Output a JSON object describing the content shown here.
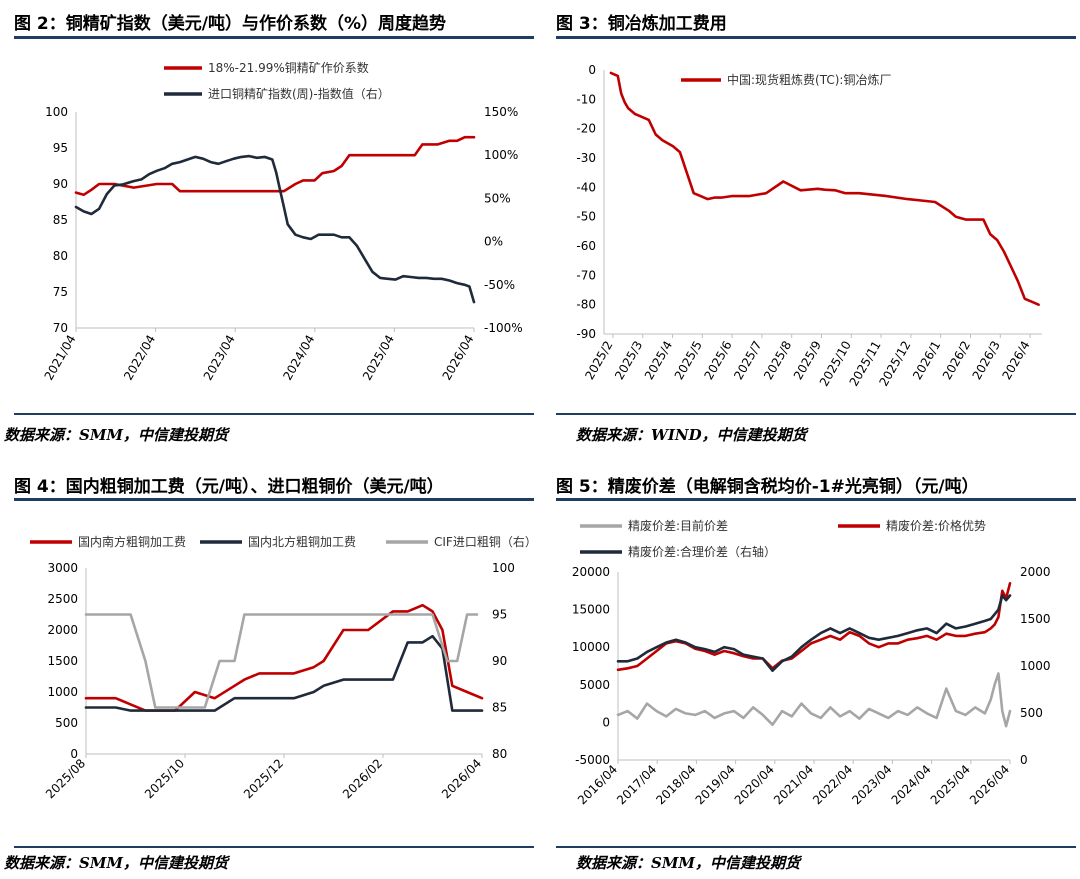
{
  "figures": [
    {
      "title": "图 2：铜精矿指数（美元/吨）与作价系数（%）周度趋势",
      "source": "数据来源：SMM，中信建投期货"
    },
    {
      "title": "图 3：铜冶炼加工费用",
      "source": "数据来源：WIND，中信建投期货"
    },
    {
      "title": "图 4：国内粗铜加工费（元/吨）、进口粗铜价（美元/吨）",
      "source": "数据来源：SMM，中信建投期货"
    },
    {
      "title": "图 5：精废价差（电解铜含税均价-1#光亮铜）（元/吨）",
      "source": "数据来源：SMM，中信建投期货"
    }
  ],
  "colors": {
    "red": "#c00000",
    "navy": "#1f2a3a",
    "gray": "#a6a6a6",
    "rule": "#1f3d63"
  },
  "chart_data": [
    {
      "id": "fig2",
      "type": "line",
      "x_tick_labels": [
        "2021/04",
        "2022/04",
        "2023/04",
        "2024/04",
        "2025/04",
        "2026/04"
      ],
      "x_domain": [
        2021.25,
        2026.42
      ],
      "y_left": {
        "ticks": [
          "70",
          "75",
          "80",
          "85",
          "90",
          "95",
          "100"
        ],
        "lim": [
          70,
          100
        ]
      },
      "y_right": {
        "ticks": [
          "-100%",
          "-50%",
          "0%",
          "50%",
          "100%",
          "150%"
        ],
        "lim": [
          -100,
          150
        ]
      },
      "legend": "top",
      "series": [
        {
          "name": "18%-21.99%铜精矿作价系数",
          "color": "#c00000",
          "axis": "left",
          "x": [
            2021.25,
            2021.35,
            2021.45,
            2021.55,
            2021.75,
            2022.0,
            2022.3,
            2022.5,
            2022.6,
            2023.0,
            2023.3,
            2023.7,
            2023.95,
            2024.1,
            2024.2,
            2024.35,
            2024.45,
            2024.6,
            2024.7,
            2024.8,
            2025.0,
            2025.2,
            2025.4,
            2025.55,
            2025.65,
            2025.75,
            2025.95,
            2026.1,
            2026.2,
            2026.3,
            2026.42
          ],
          "y": [
            88.8,
            88.5,
            89.2,
            90,
            90,
            89.5,
            90,
            90,
            89,
            89,
            89,
            89,
            89,
            90,
            90.5,
            90.5,
            91.5,
            91.8,
            92.5,
            94,
            94,
            94,
            94,
            94,
            94,
            95.5,
            95.5,
            96,
            96,
            96.5,
            96.5
          ]
        },
        {
          "name": "进口铜精矿指数(周)-指数值（右）",
          "color": "#1f2a3a",
          "axis": "right",
          "x": [
            2021.25,
            2021.35,
            2021.45,
            2021.55,
            2021.65,
            2021.75,
            2021.85,
            2022.0,
            2022.1,
            2022.2,
            2022.3,
            2022.4,
            2022.5,
            2022.6,
            2022.7,
            2022.8,
            2022.9,
            2023.0,
            2023.1,
            2023.2,
            2023.3,
            2023.4,
            2023.5,
            2023.6,
            2023.7,
            2023.8,
            2023.85,
            2023.9,
            2023.95,
            2024.0,
            2024.1,
            2024.2,
            2024.3,
            2024.4,
            2024.5,
            2024.6,
            2024.7,
            2024.8,
            2024.9,
            2025.0,
            2025.1,
            2025.2,
            2025.3,
            2025.4,
            2025.5,
            2025.6,
            2025.7,
            2025.8,
            2025.9,
            2026.0,
            2026.1,
            2026.2,
            2026.3,
            2026.36,
            2026.42
          ],
          "y": [
            40,
            35,
            32,
            38,
            55,
            65,
            66,
            70,
            72,
            78,
            82,
            85,
            90,
            92,
            95,
            98,
            96,
            92,
            90,
            93,
            96,
            98,
            99,
            97,
            98,
            95,
            80,
            60,
            40,
            20,
            8,
            5,
            3,
            8,
            8,
            8,
            5,
            5,
            -5,
            -20,
            -35,
            -42,
            -43,
            -44,
            -40,
            -41,
            -42,
            -42,
            -43,
            -43,
            -45,
            -48,
            -50,
            -52,
            -70
          ]
        }
      ]
    },
    {
      "id": "fig3",
      "type": "line",
      "x_tick_labels": [
        "2025/2",
        "2025/3",
        "2025/4",
        "2025/5",
        "2025/6",
        "2025/7",
        "2025/8",
        "2025/9",
        "2025/10",
        "2025/11",
        "2025/12",
        "2026/1",
        "2026/2",
        "2026/3",
        "2026/4"
      ],
      "x_domain": [
        2025.08,
        2026.35
      ],
      "y_left": {
        "ticks": [
          "-90",
          "-80",
          "-70",
          "-60",
          "-50",
          "-40",
          "-30",
          "-20",
          "-10",
          "0"
        ],
        "lim": [
          -90,
          0
        ]
      },
      "legend": "top",
      "series": [
        {
          "name": "中国:现货粗炼费(TC):铜冶炼厂",
          "color": "#c00000",
          "axis": "left",
          "x": [
            2025.1,
            2025.12,
            2025.13,
            2025.14,
            2025.15,
            2025.17,
            2025.19,
            2025.21,
            2025.23,
            2025.25,
            2025.28,
            2025.3,
            2025.32,
            2025.34,
            2025.36,
            2025.38,
            2025.4,
            2025.42,
            2025.45,
            2025.5,
            2025.55,
            2025.6,
            2025.65,
            2025.7,
            2025.72,
            2025.75,
            2025.78,
            2025.82,
            2025.9,
            2025.96,
            2026.0,
            2026.04,
            2026.08,
            2026.1,
            2026.13,
            2026.15,
            2026.18,
            2026.2,
            2026.22,
            2026.24,
            2026.26,
            2026.28,
            2026.3,
            2026.32,
            2026.34
          ],
          "y": [
            -1,
            -2,
            -8,
            -11,
            -13,
            -15,
            -16,
            -17,
            -22,
            -24,
            -26,
            -28,
            -35,
            -42,
            -43,
            -44,
            -43.5,
            -43.5,
            -43,
            -43,
            -42,
            -38,
            -41,
            -40.5,
            -40.8,
            -41,
            -42,
            -42,
            -43,
            -44,
            -44.5,
            -45,
            -48,
            -50,
            -51,
            -51,
            -51,
            -56,
            -58,
            -62,
            -67,
            -72,
            -78,
            -79,
            -80
          ]
        }
      ]
    },
    {
      "id": "fig4",
      "type": "line",
      "x_tick_labels": [
        "2025/08",
        "2025/10",
        "2025/12",
        "2026/02",
        "2026/04"
      ],
      "x_domain": [
        2025.58,
        2026.38
      ],
      "y_left": {
        "ticks": [
          "0",
          "500",
          "1000",
          "1500",
          "2000",
          "2500",
          "3000"
        ],
        "lim": [
          0,
          3000
        ]
      },
      "y_right": {
        "ticks": [
          "80",
          "85",
          "90",
          "95",
          "100"
        ],
        "lim": [
          80,
          100
        ]
      },
      "legend": "top",
      "series": [
        {
          "name": "国内南方粗铜加工费",
          "color": "#c00000",
          "axis": "left",
          "x": [
            2025.58,
            2025.64,
            2025.67,
            2025.7,
            2025.76,
            2025.8,
            2025.84,
            2025.88,
            2025.9,
            2025.93,
            2025.96,
            2026.0,
            2026.04,
            2026.06,
            2026.1,
            2026.15,
            2026.2,
            2026.23,
            2026.26,
            2026.28,
            2026.3,
            2026.32,
            2026.35,
            2026.38
          ],
          "y": [
            900,
            900,
            800,
            700,
            700,
            1000,
            900,
            1100,
            1200,
            1300,
            1300,
            1300,
            1400,
            1500,
            2000,
            2000,
            2300,
            2300,
            2400,
            2300,
            2000,
            1100,
            1000,
            900
          ]
        },
        {
          "name": "国内北方粗铜加工费",
          "color": "#1f2a3a",
          "axis": "left",
          "x": [
            2025.58,
            2025.64,
            2025.67,
            2025.7,
            2025.76,
            2025.84,
            2025.88,
            2025.9,
            2025.96,
            2026.0,
            2026.04,
            2026.06,
            2026.1,
            2026.15,
            2026.2,
            2026.23,
            2026.26,
            2026.28,
            2026.3,
            2026.32,
            2026.35,
            2026.38
          ],
          "y": [
            750,
            750,
            700,
            700,
            700,
            700,
            900,
            900,
            900,
            900,
            1000,
            1100,
            1200,
            1200,
            1200,
            1800,
            1800,
            1900,
            1700,
            700,
            700,
            700
          ]
        },
        {
          "name": "CIF进口粗铜（右）",
          "color": "#a6a6a6",
          "axis": "right",
          "x": [
            2025.58,
            2025.67,
            2025.7,
            2025.72,
            2025.82,
            2025.85,
            2025.88,
            2025.9,
            2025.95,
            2026.05,
            2026.15,
            2026.22,
            2026.28,
            2026.31,
            2026.33,
            2026.35,
            2026.37
          ],
          "y": [
            95,
            95,
            90,
            85,
            85,
            90,
            90,
            95,
            95,
            95,
            95,
            95,
            95,
            90,
            90,
            95,
            95
          ]
        }
      ]
    },
    {
      "id": "fig5",
      "type": "line",
      "x_tick_labels": [
        "2016/04",
        "2017/04",
        "2018/04",
        "2019/04",
        "2020/04",
        "2021/04",
        "2022/04",
        "2023/04",
        "2024/04",
        "2025/04",
        "2026/04"
      ],
      "x_domain": [
        2016.25,
        2026.4
      ],
      "y_left": {
        "ticks": [
          "-5000",
          "0",
          "5000",
          "10000",
          "15000",
          "20000"
        ],
        "lim": [
          -5000,
          20000
        ]
      },
      "y_right": {
        "ticks": [
          "0",
          "500",
          "1000",
          "1500",
          "2000"
        ],
        "lim": [
          0,
          2000
        ]
      },
      "legend": "top",
      "series": [
        {
          "name": "精废价差:目前价差",
          "color": "#a6a6a6",
          "axis": "left",
          "x": [
            2016.25,
            2016.5,
            2016.75,
            2017.0,
            2017.25,
            2017.5,
            2017.75,
            2018.0,
            2018.25,
            2018.5,
            2018.75,
            2019.0,
            2019.25,
            2019.5,
            2019.75,
            2020.0,
            2020.25,
            2020.5,
            2020.75,
            2021.0,
            2021.25,
            2021.5,
            2021.75,
            2022.0,
            2022.25,
            2022.5,
            2022.75,
            2023.0,
            2023.25,
            2023.5,
            2023.75,
            2024.0,
            2024.25,
            2024.5,
            2024.75,
            2025.0,
            2025.25,
            2025.5,
            2025.75,
            2025.9,
            2026.0,
            2026.1,
            2026.2,
            2026.3,
            2026.4
          ],
          "y": [
            1000,
            1500,
            500,
            2500,
            1500,
            800,
            1800,
            1200,
            1000,
            1500,
            600,
            1200,
            1500,
            600,
            2000,
            1000,
            -300,
            1500,
            800,
            2500,
            1200,
            600,
            2000,
            800,
            1500,
            500,
            1800,
            1200,
            600,
            1500,
            1000,
            2000,
            1200,
            600,
            4500,
            1500,
            1000,
            2000,
            1200,
            3000,
            5000,
            6500,
            1500,
            -500,
            1500
          ]
        },
        {
          "name": "精废价差:价格优势",
          "color": "#c00000",
          "axis": "left",
          "x": [
            2016.25,
            2016.5,
            2016.75,
            2017.0,
            2017.25,
            2017.5,
            2017.75,
            2018.0,
            2018.25,
            2018.5,
            2018.75,
            2019.0,
            2019.25,
            2019.5,
            2019.75,
            2020.0,
            2020.25,
            2020.5,
            2020.75,
            2021.0,
            2021.25,
            2021.5,
            2021.75,
            2022.0,
            2022.25,
            2022.5,
            2022.75,
            2023.0,
            2023.25,
            2023.5,
            2023.75,
            2024.0,
            2024.25,
            2024.5,
            2024.75,
            2025.0,
            2025.25,
            2025.5,
            2025.75,
            2025.9,
            2026.0,
            2026.1,
            2026.2,
            2026.3,
            2026.4
          ],
          "y": [
            7000,
            7200,
            7500,
            8500,
            9500,
            10500,
            10800,
            10500,
            9800,
            9500,
            9000,
            9500,
            9200,
            8800,
            8500,
            8500,
            7200,
            8200,
            8500,
            9500,
            10500,
            11000,
            11500,
            11000,
            12000,
            11500,
            10500,
            10000,
            10500,
            10500,
            11000,
            11200,
            11500,
            11000,
            11800,
            11500,
            11500,
            11800,
            12000,
            12500,
            13000,
            14000,
            17500,
            16500,
            18500
          ]
        },
        {
          "name": "精废价差:合理价差（右轴）",
          "color": "#1f2a3a",
          "axis": "right",
          "x": [
            2016.25,
            2016.5,
            2016.75,
            2017.0,
            2017.25,
            2017.5,
            2017.75,
            2018.0,
            2018.25,
            2018.5,
            2018.75,
            2019.0,
            2019.25,
            2019.5,
            2019.75,
            2020.0,
            2020.25,
            2020.5,
            2020.75,
            2021.0,
            2021.25,
            2021.5,
            2021.75,
            2022.0,
            2022.25,
            2022.5,
            2022.75,
            2023.0,
            2023.25,
            2023.5,
            2023.75,
            2024.0,
            2024.25,
            2024.5,
            2024.75,
            2025.0,
            2025.25,
            2025.5,
            2025.75,
            2025.9,
            2026.0,
            2026.1,
            2026.2,
            2026.3,
            2026.4
          ],
          "y": [
            1050,
            1050,
            1080,
            1150,
            1200,
            1250,
            1280,
            1250,
            1200,
            1180,
            1150,
            1200,
            1180,
            1120,
            1100,
            1080,
            950,
            1050,
            1100,
            1200,
            1280,
            1350,
            1400,
            1350,
            1400,
            1350,
            1300,
            1280,
            1300,
            1320,
            1350,
            1380,
            1400,
            1350,
            1450,
            1400,
            1420,
            1450,
            1480,
            1500,
            1550,
            1600,
            1750,
            1700,
            1750
          ]
        }
      ]
    }
  ]
}
